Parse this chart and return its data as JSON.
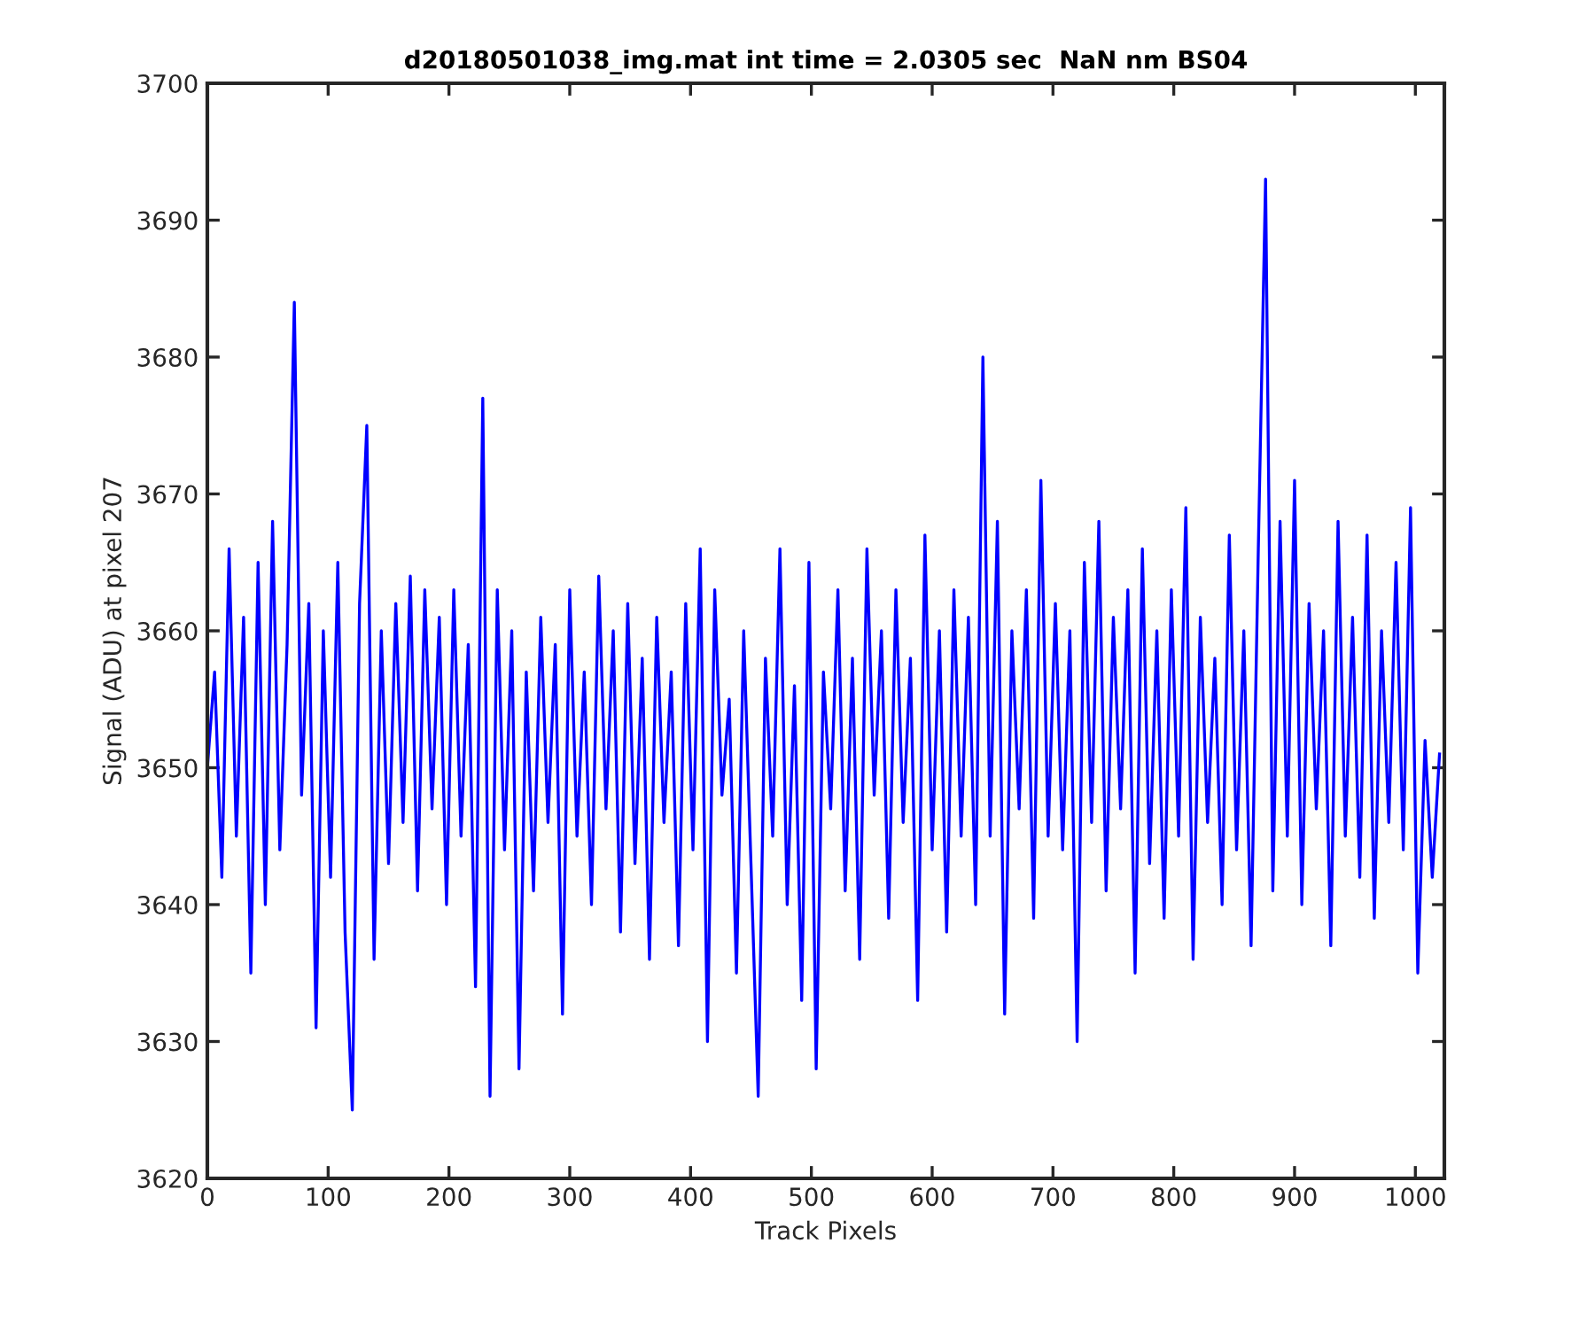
{
  "chart_data": {
    "type": "line",
    "title": "d20180501038_img.mat int time = 2.0305 sec  NaN nm BS04",
    "xlabel": "Track Pixels",
    "ylabel": "Signal (ADU) at pixel 207",
    "xlim": [
      0,
      1024
    ],
    "xticks": [
      0,
      100,
      200,
      300,
      400,
      500,
      600,
      700,
      800,
      900,
      1000
    ],
    "ylim": [
      3620,
      3700
    ],
    "yticks": [
      3620,
      3630,
      3640,
      3650,
      3660,
      3670,
      3680,
      3690,
      3700
    ],
    "marker": "none",
    "line_style": "solid",
    "series": [
      {
        "color": "#0000ff",
        "x": [
          0,
          6,
          12,
          18,
          24,
          30,
          36,
          42,
          48,
          54,
          60,
          66,
          72,
          78,
          84,
          90,
          96,
          102,
          108,
          114,
          120,
          126,
          132,
          138,
          144,
          150,
          156,
          162,
          168,
          174,
          180,
          186,
          192,
          198,
          204,
          210,
          216,
          222,
          228,
          234,
          240,
          246,
          252,
          258,
          264,
          270,
          276,
          282,
          288,
          294,
          300,
          306,
          312,
          318,
          324,
          330,
          336,
          342,
          348,
          354,
          360,
          366,
          372,
          378,
          384,
          390,
          396,
          402,
          408,
          414,
          420,
          426,
          432,
          438,
          444,
          450,
          456,
          462,
          468,
          474,
          480,
          486,
          492,
          498,
          504,
          510,
          516,
          522,
          528,
          534,
          540,
          546,
          552,
          558,
          564,
          570,
          576,
          582,
          588,
          594,
          600,
          606,
          612,
          618,
          624,
          630,
          636,
          642,
          648,
          654,
          660,
          666,
          672,
          678,
          684,
          690,
          696,
          702,
          708,
          714,
          720,
          726,
          732,
          738,
          744,
          750,
          756,
          762,
          768,
          774,
          780,
          786,
          792,
          798,
          804,
          810,
          816,
          822,
          828,
          834,
          840,
          846,
          852,
          858,
          864,
          870,
          876,
          882,
          888,
          894,
          900,
          906,
          912,
          918,
          924,
          930,
          936,
          942,
          948,
          954,
          960,
          966,
          972,
          978,
          984,
          990,
          996,
          1002,
          1008,
          1014,
          1020
        ],
        "values": [
          3650,
          3657,
          3642,
          3666,
          3645,
          3661,
          3635,
          3665,
          3640,
          3668,
          3644,
          3659,
          3684,
          3648,
          3662,
          3631,
          3660,
          3642,
          3665,
          3638,
          3625,
          3662,
          3675,
          3636,
          3660,
          3643,
          3662,
          3646,
          3664,
          3641,
          3663,
          3647,
          3661,
          3640,
          3663,
          3645,
          3659,
          3634,
          3677,
          3626,
          3663,
          3644,
          3660,
          3628,
          3657,
          3641,
          3661,
          3646,
          3659,
          3632,
          3663,
          3645,
          3657,
          3640,
          3664,
          3647,
          3660,
          3638,
          3662,
          3643,
          3658,
          3636,
          3661,
          3646,
          3657,
          3637,
          3662,
          3644,
          3666,
          3630,
          3663,
          3648,
          3655,
          3635,
          3660,
          3643,
          3626,
          3658,
          3645,
          3666,
          3640,
          3656,
          3633,
          3665,
          3628,
          3657,
          3647,
          3663,
          3641,
          3658,
          3636,
          3666,
          3648,
          3660,
          3639,
          3663,
          3646,
          3658,
          3633,
          3667,
          3644,
          3660,
          3638,
          3663,
          3645,
          3661,
          3640,
          3680,
          3645,
          3668,
          3632,
          3660,
          3647,
          3663,
          3639,
          3671,
          3645,
          3662,
          3644,
          3660,
          3630,
          3665,
          3646,
          3668,
          3641,
          3661,
          3647,
          3663,
          3635,
          3666,
          3643,
          3660,
          3639,
          3663,
          3645,
          3669,
          3636,
          3661,
          3646,
          3658,
          3640,
          3667,
          3644,
          3660,
          3637,
          3666,
          3693,
          3641,
          3668,
          3645,
          3671,
          3640,
          3662,
          3647,
          3660,
          3637,
          3668,
          3645,
          3661,
          3642,
          3667,
          3639,
          3660,
          3646,
          3665,
          3644,
          3669,
          3635,
          3652,
          3642,
          3651
        ]
      }
    ]
  }
}
